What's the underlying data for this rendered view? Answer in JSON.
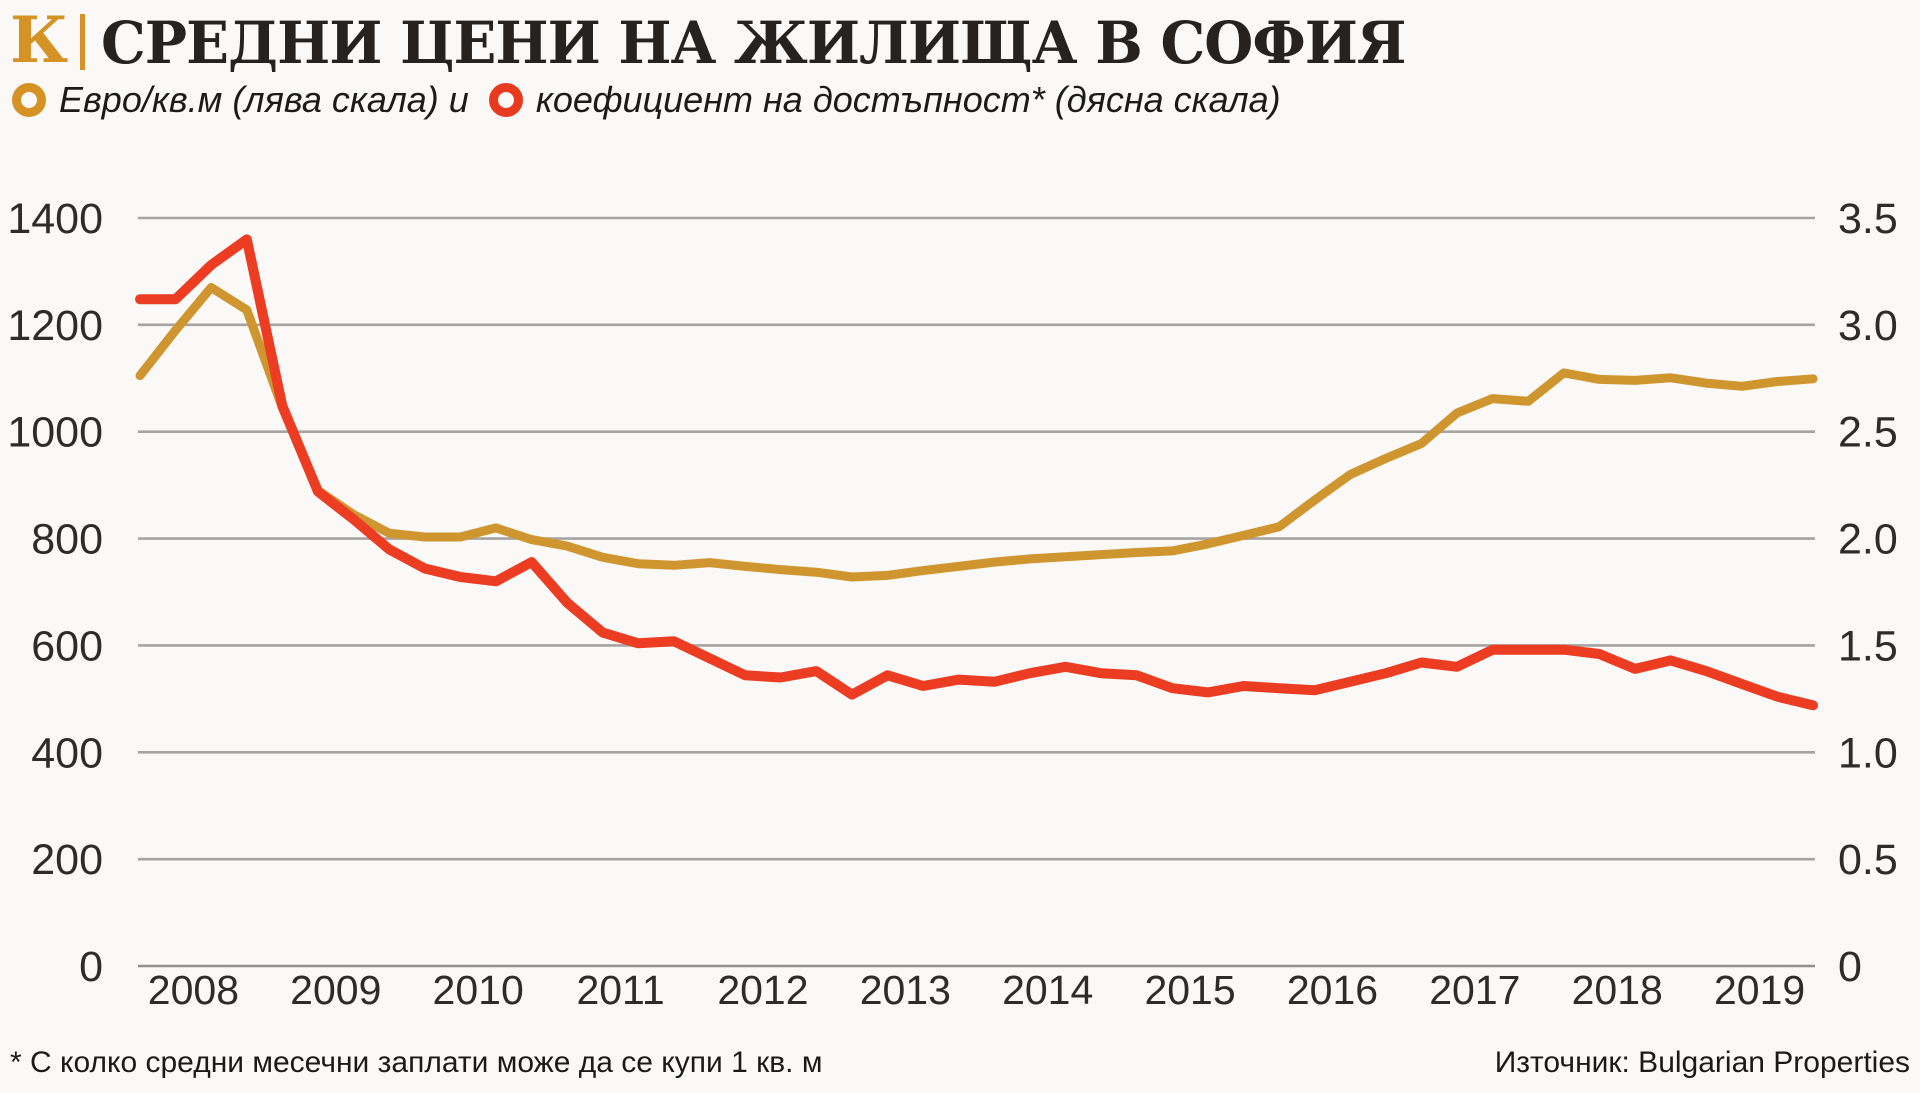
{
  "header": {
    "logo_letter": "К",
    "title": "СРЕДНИ ЦЕНИ НА ЖИЛИЩА В СОФИЯ"
  },
  "legend": {
    "series1_label": "Евро/кв.м (лява скала) и",
    "series2_label": "коефициент на достъпност* (дясна скала)"
  },
  "footer": {
    "footnote": "* С колко средни месечни заплати може да се купи 1 кв. м",
    "source": "Източник: Bulgarian Properties"
  },
  "colors": {
    "gold": "#cf9630",
    "red": "#ec3c22",
    "grid": "#a5a4a2",
    "zero_line": "#8f8e8c",
    "text": "#262220",
    "background": "#faf9f7"
  },
  "chart_data": {
    "type": "line",
    "title": "СРЕДНИ ЦЕНИ НА ЖИЛИЩА В СОФИЯ",
    "x_unit": "quarterly",
    "grid": true,
    "legend_position": "top",
    "years": [
      "2008",
      "2009",
      "2010",
      "2011",
      "2012",
      "2013",
      "2014",
      "2015",
      "2016",
      "2017",
      "2018",
      "2019"
    ],
    "left_axis": {
      "label": "Евро/кв.м",
      "range": [
        0,
        1400
      ],
      "ticks": [
        1400,
        1200,
        1000,
        800,
        600,
        400,
        200,
        0
      ],
      "tick_labels": [
        "1400",
        "1200",
        "1000",
        "800",
        "600",
        "400",
        "200",
        "0"
      ]
    },
    "right_axis": {
      "label": "коефициент на достъпност",
      "range": [
        0,
        3.5
      ],
      "ticks": [
        3.5,
        3.0,
        2.5,
        2.0,
        1.5,
        1.0,
        0.5,
        0
      ],
      "tick_labels": [
        "3.5",
        "3.0",
        "2.5",
        "2.0",
        "1.5",
        "1.0",
        "0.5",
        "0"
      ]
    },
    "series": [
      {
        "name": "Евро/кв.м (лява скала)",
        "axis": "left",
        "color": "#cf9630",
        "values": [
          1105,
          1190,
          1270,
          1228,
          1045,
          890,
          845,
          810,
          803,
          803,
          820,
          798,
          786,
          765,
          753,
          750,
          755,
          748,
          742,
          737,
          728,
          731,
          740,
          748,
          756,
          762,
          766,
          770,
          774,
          777,
          790,
          806,
          822,
          872,
          920,
          950,
          978,
          1035,
          1062,
          1057,
          1110,
          1098,
          1096,
          1101,
          1091,
          1085,
          1094,
          1099
        ]
      },
      {
        "name": "коефициент на достъпност (дясна скала)",
        "axis": "right",
        "color": "#ec3c22",
        "values": [
          3.12,
          3.12,
          3.28,
          3.4,
          2.62,
          2.22,
          2.09,
          1.95,
          1.86,
          1.82,
          1.8,
          1.89,
          1.7,
          1.56,
          1.51,
          1.52,
          1.44,
          1.36,
          1.35,
          1.38,
          1.27,
          1.36,
          1.31,
          1.34,
          1.33,
          1.37,
          1.4,
          1.37,
          1.36,
          1.3,
          1.28,
          1.31,
          1.3,
          1.29,
          1.33,
          1.37,
          1.42,
          1.4,
          1.48,
          1.48,
          1.48,
          1.46,
          1.39,
          1.43,
          1.38,
          1.32,
          1.26,
          1.22
        ]
      }
    ]
  }
}
